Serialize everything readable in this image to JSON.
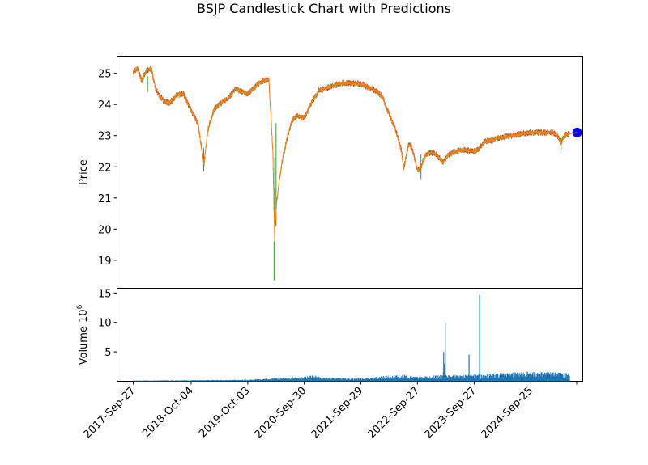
{
  "chart_data": {
    "type": "candlestick",
    "title": "BSJP Candlestick Chart with Predictions",
    "price_panel": {
      "ylabel": "Price",
      "yticks": [
        19,
        20,
        21,
        22,
        23,
        24,
        25
      ],
      "ylim": [
        18.1,
        25.55
      ],
      "grid": false
    },
    "volume_panel": {
      "ylabel": "Volume",
      "ylabel_exponent": "10",
      "ylabel_exponent_power": "6",
      "yticks": [
        5,
        10,
        15
      ],
      "ylim": [
        0,
        15.8
      ],
      "grid": false
    },
    "x_axis": {
      "type": "date",
      "tick_labels": [
        "2017-Sep-27",
        "2018-Oct-04",
        "2019-Oct-03",
        "2020-Sep-30",
        "2021-Sep-29",
        "2022-Sep-27",
        "2023-Sep-27",
        "2024-Sep-25"
      ],
      "extra_unlabeled_tick": "2025-Sep",
      "xlim": [
        "2017-Jun-15",
        "2025-Aug-25"
      ]
    },
    "colors": {
      "candle_up": "#2ca02c",
      "candle_down": "#d62728",
      "close_line": "#ff7f0e",
      "volume_bar": "#1f77b4",
      "prediction_marker": "#0000ff"
    },
    "price_series": [
      {
        "date": "2017-Sep-27",
        "close": 25.05
      },
      {
        "date": "2017-Oct-25",
        "close": 25.15
      },
      {
        "date": "2017-Nov-20",
        "close": 24.75
      },
      {
        "date": "2017-Dec-15",
        "close": 25.05
      },
      {
        "date": "2018-Jan-20",
        "close": 25.15
      },
      {
        "date": "2018-Feb-15",
        "close": 24.55
      },
      {
        "date": "2018-Mar-15",
        "close": 24.25
      },
      {
        "date": "2018-Apr-15",
        "close": 24.1
      },
      {
        "date": "2018-May-20",
        "close": 24.05
      },
      {
        "date": "2018-Jul-01",
        "close": 24.3
      },
      {
        "date": "2018-Aug-15",
        "close": 24.35
      },
      {
        "date": "2018-Oct-04",
        "close": 23.8
      },
      {
        "date": "2018-Nov-15",
        "close": 23.4
      },
      {
        "date": "2018-Dec-26",
        "close": 22.1
      },
      {
        "date": "2019-Jan-20",
        "close": 23.2
      },
      {
        "date": "2019-Mar-01",
        "close": 23.85
      },
      {
        "date": "2019-Apr-15",
        "close": 24.05
      },
      {
        "date": "2019-Jun-01",
        "close": 24.2
      },
      {
        "date": "2019-Jul-15",
        "close": 24.5
      },
      {
        "date": "2019-Sep-01",
        "close": 24.4
      },
      {
        "date": "2019-Oct-03",
        "close": 24.35
      },
      {
        "date": "2019-Nov-15",
        "close": 24.55
      },
      {
        "date": "2019-Dec-31",
        "close": 24.75
      },
      {
        "date": "2020-Feb-15",
        "close": 24.8
      },
      {
        "date": "2020-Mar-12",
        "close": 22.5
      },
      {
        "date": "2020-Mar-23",
        "close": 19.7
      },
      {
        "date": "2020-Apr-05",
        "close": 20.8
      },
      {
        "date": "2020-Apr-20",
        "close": 21.5
      },
      {
        "date": "2020-May-15",
        "close": 22.3
      },
      {
        "date": "2020-Jun-15",
        "close": 23.0
      },
      {
        "date": "2020-Jul-15",
        "close": 23.5
      },
      {
        "date": "2020-Aug-15",
        "close": 23.65
      },
      {
        "date": "2020-Sep-30",
        "close": 23.55
      },
      {
        "date": "2020-Nov-15",
        "close": 24.05
      },
      {
        "date": "2021-Jan-01",
        "close": 24.45
      },
      {
        "date": "2021-Mar-01",
        "close": 24.55
      },
      {
        "date": "2021-May-01",
        "close": 24.65
      },
      {
        "date": "2021-Jul-01",
        "close": 24.7
      },
      {
        "date": "2021-Sep-29",
        "close": 24.65
      },
      {
        "date": "2021-Nov-15",
        "close": 24.55
      },
      {
        "date": "2022-Jan-01",
        "close": 24.45
      },
      {
        "date": "2022-Feb-15",
        "close": 24.25
      },
      {
        "date": "2022-Mar-15",
        "close": 23.85
      },
      {
        "date": "2022-Apr-15",
        "close": 23.5
      },
      {
        "date": "2022-May-15",
        "close": 23.1
      },
      {
        "date": "2022-Jun-15",
        "close": 22.55
      },
      {
        "date": "2022-Jul-01",
        "close": 21.95
      },
      {
        "date": "2022-Aug-01",
        "close": 22.7
      },
      {
        "date": "2022-Aug-20",
        "close": 22.65
      },
      {
        "date": "2022-Sep-27",
        "close": 21.9
      },
      {
        "date": "2022-Oct-15",
        "close": 21.95
      },
      {
        "date": "2022-Nov-15",
        "close": 22.35
      },
      {
        "date": "2022-Dec-15",
        "close": 22.45
      },
      {
        "date": "2023-Jan-15",
        "close": 22.45
      },
      {
        "date": "2023-Mar-10",
        "close": 22.15
      },
      {
        "date": "2023-Apr-15",
        "close": 22.4
      },
      {
        "date": "2023-Jun-01",
        "close": 22.5
      },
      {
        "date": "2023-Jul-15",
        "close": 22.55
      },
      {
        "date": "2023-Sep-27",
        "close": 22.5
      },
      {
        "date": "2023-Oct-20",
        "close": 22.55
      },
      {
        "date": "2023-Dec-01",
        "close": 22.8
      },
      {
        "date": "2024-Jan-15",
        "close": 22.85
      },
      {
        "date": "2024-Mar-15",
        "close": 22.95
      },
      {
        "date": "2024-Jun-01",
        "close": 23.0
      },
      {
        "date": "2024-Sep-25",
        "close": 23.1
      },
      {
        "date": "2024-Dec-15",
        "close": 23.1
      },
      {
        "date": "2025-Feb-15",
        "close": 23.1
      },
      {
        "date": "2025-Mar-15",
        "close": 23.0
      },
      {
        "date": "2025-Apr-07",
        "close": 22.75
      },
      {
        "date": "2025-Apr-25",
        "close": 23.0
      },
      {
        "date": "2025-May-15",
        "close": 23.05
      },
      {
        "date": "2025-Jun-01",
        "close": 23.05
      }
    ],
    "volume_series": [
      {
        "date": "2017-Sep-27",
        "value": 0.1
      },
      {
        "date": "2018-Oct-04",
        "value": 0.15
      },
      {
        "date": "2019-Oct-03",
        "value": 0.2
      },
      {
        "date": "2020-Mar-20",
        "value": 0.4
      },
      {
        "date": "2020-Sep-30",
        "value": 0.6
      },
      {
        "date": "2020-Nov-20",
        "value": 1.0
      },
      {
        "date": "2021-Jan-15",
        "value": 0.5
      },
      {
        "date": "2021-Sep-29",
        "value": 0.4
      },
      {
        "date": "2022-Jun-15",
        "value": 0.9
      },
      {
        "date": "2022-Sep-27",
        "value": 0.6
      },
      {
        "date": "2023-Jan-15",
        "value": 0.8
      },
      {
        "date": "2023-Mar-15",
        "value": 5.0
      },
      {
        "date": "2023-Mar-25",
        "value": 9.9
      },
      {
        "date": "2023-Aug-25",
        "value": 4.5
      },
      {
        "date": "2023-Nov-01",
        "value": 14.7
      },
      {
        "date": "2023-Dec-01",
        "value": 1.0
      },
      {
        "date": "2024-Sep-25",
        "value": 1.3
      },
      {
        "date": "2025-Jun-01",
        "value": 1.1
      }
    ],
    "prediction": {
      "date": "2025-Jul-20",
      "value": 23.1
    }
  }
}
